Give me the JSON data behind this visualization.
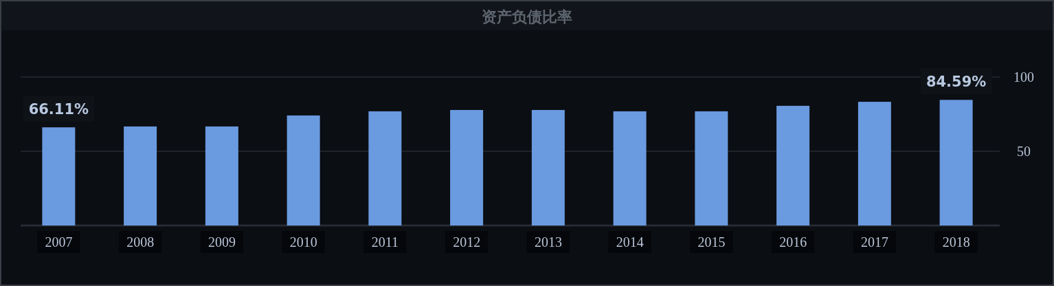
{
  "chart_data": {
    "type": "bar",
    "title": "资产负债比率",
    "categories": [
      "2007",
      "2008",
      "2009",
      "2010",
      "2011",
      "2012",
      "2013",
      "2014",
      "2015",
      "2016",
      "2017",
      "2018"
    ],
    "values": [
      66.11,
      66.7,
      66.7,
      74.1,
      76.9,
      77.8,
      77.8,
      76.9,
      76.9,
      80.6,
      83.3,
      84.59
    ],
    "value_labels": [
      "66.11%",
      null,
      null,
      null,
      null,
      null,
      null,
      null,
      null,
      null,
      null,
      "84.59%"
    ],
    "color": "#6a9ae0",
    "ylim": [
      0,
      100
    ],
    "yticks": [
      {
        "value": 0,
        "label": null
      },
      50,
      100
    ],
    "grid": "y"
  }
}
